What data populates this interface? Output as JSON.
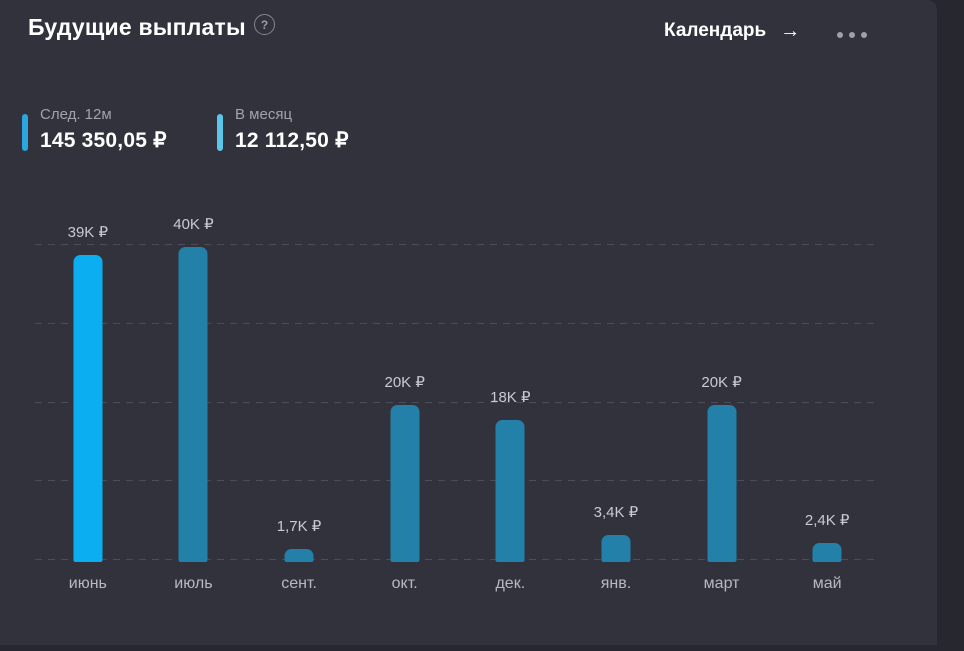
{
  "header": {
    "title": "Будущие выплаты",
    "help_glyph": "?",
    "calendar_label": "Календарь",
    "arrow_glyph": "→"
  },
  "stats": [
    {
      "label": "След. 12м",
      "value": "145 350,05 ₽",
      "accent": "#2AA7E0"
    },
    {
      "label": "В месяц",
      "value": "12 112,50 ₽",
      "accent": "#5BC6E8"
    }
  ],
  "chart_data": {
    "type": "bar",
    "title": "Будущие выплаты",
    "categories": [
      "июнь",
      "июль",
      "сент.",
      "окт.",
      "дек.",
      "янв.",
      "март",
      "май"
    ],
    "values": [
      39000,
      40000,
      1700,
      20000,
      18000,
      3400,
      20000,
      2400
    ],
    "value_labels": [
      "39K ₽",
      "40K ₽",
      "1,7K ₽",
      "20K ₽",
      "18K ₽",
      "3,4K ₽",
      "20K ₽",
      "2,4K ₽"
    ],
    "currency": "₽",
    "highlight_index": 0,
    "colors": {
      "highlight": "#0BAEF0",
      "default": "#2380A9"
    },
    "ylim": [
      0,
      40000
    ],
    "y_gridlines": [
      0,
      10000,
      20000,
      30000,
      40000
    ],
    "grid": "dashed horizontal, no y tick labels",
    "legend": "none"
  }
}
